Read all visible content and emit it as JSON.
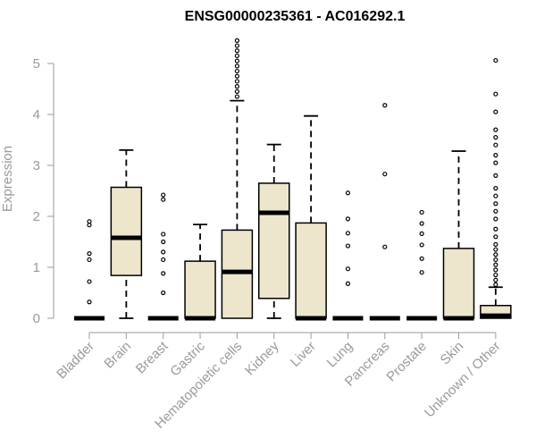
{
  "chart_data": {
    "type": "boxplot",
    "title": "ENSG00000235361 - AC016292.1",
    "ylabel": "Expression",
    "ylim": [
      0,
      5.5
    ],
    "yticks": [
      "0",
      "1",
      "2",
      "3",
      "4",
      "5"
    ],
    "box_color": "#ede6cd",
    "categories": [
      "Bladder",
      "Brain",
      "Breast",
      "Gastric",
      "Hematopoietic cells",
      "Kidney",
      "Liver",
      "Lung",
      "Pancreas",
      "Prostate",
      "Skin",
      "Unknown / Other"
    ],
    "boxes": [
      {
        "min": 0,
        "q1": 0,
        "median": 0,
        "q3": 0,
        "max": 0,
        "outliers": [
          0.32,
          0.72,
          1.15,
          1.27,
          1.83,
          1.9
        ]
      },
      {
        "min": 0,
        "q1": 0.84,
        "median": 1.58,
        "q3": 2.57,
        "max": 3.3,
        "outliers": []
      },
      {
        "min": 0,
        "q1": 0,
        "median": 0,
        "q3": 0,
        "max": 0,
        "outliers": [
          0.5,
          0.88,
          1.15,
          1.3,
          1.5,
          1.65,
          2.33,
          2.42
        ]
      },
      {
        "min": 0,
        "q1": 0,
        "median": 0,
        "q3": 1.12,
        "max": 1.84,
        "outliers": []
      },
      {
        "min": 0,
        "q1": 0,
        "median": 0.91,
        "q3": 1.73,
        "max": 4.27,
        "outliers": [
          4.35,
          4.45,
          4.55,
          4.65,
          4.75,
          4.85,
          4.95,
          5.05,
          5.15,
          5.25,
          5.35,
          5.45
        ]
      },
      {
        "min": 0,
        "q1": 0.39,
        "median": 2.07,
        "q3": 2.65,
        "max": 3.41,
        "outliers": []
      },
      {
        "min": 0,
        "q1": 0,
        "median": 0,
        "q3": 1.87,
        "max": 3.97,
        "outliers": []
      },
      {
        "min": 0,
        "q1": 0,
        "median": 0,
        "q3": 0,
        "max": 0,
        "outliers": [
          0.68,
          0.97,
          1.42,
          1.67,
          1.95,
          2.46
        ]
      },
      {
        "min": 0,
        "q1": 0,
        "median": 0,
        "q3": 0,
        "max": 0,
        "outliers": [
          1.4,
          2.83,
          4.18
        ]
      },
      {
        "min": 0,
        "q1": 0,
        "median": 0,
        "q3": 0,
        "max": 0,
        "outliers": [
          0.9,
          1.17,
          1.44,
          1.66,
          1.86,
          2.08
        ]
      },
      {
        "min": 0,
        "q1": 0,
        "median": 0,
        "q3": 1.37,
        "max": 3.28,
        "outliers": []
      },
      {
        "min": 0,
        "q1": 0,
        "median": 0.05,
        "q3": 0.25,
        "max": 0.61,
        "outliers": [
          0.66,
          0.75,
          0.85,
          0.95,
          1.05,
          1.15,
          1.25,
          1.35,
          1.45,
          1.6,
          1.75,
          1.95,
          2.1,
          2.25,
          2.4,
          2.55,
          2.8,
          3.05,
          3.2,
          3.4,
          3.55,
          3.7,
          4.05,
          4.4,
          5.06
        ]
      }
    ]
  }
}
